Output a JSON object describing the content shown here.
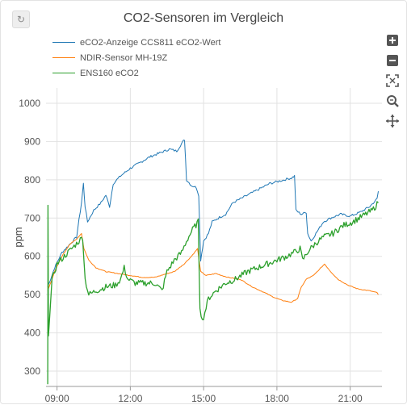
{
  "refresh_icon": "refresh-icon",
  "chart_data": {
    "type": "line",
    "title": "CO2-Sensoren im Vergleich",
    "ylabel": "ppm",
    "xlabel": "",
    "ylim": [
      260,
      1040
    ],
    "xlim": [
      8.55,
      22.3
    ],
    "yticks": [
      300,
      400,
      500,
      600,
      700,
      800,
      900,
      1000
    ],
    "xticks": [
      {
        "v": 9,
        "label": "09:00"
      },
      {
        "v": 12,
        "label": "12:00"
      },
      {
        "v": 15,
        "label": "15:00"
      },
      {
        "v": 18,
        "label": "18:00"
      },
      {
        "v": 21,
        "label": "21:00"
      }
    ],
    "grid": true,
    "legend_position": "top-left",
    "series": [
      {
        "name": "eCO2-Anzeige CCS811 eCO2-Wert",
        "color": "#1f77b4",
        "points": [
          [
            8.62,
            520
          ],
          [
            8.9,
            570
          ],
          [
            9.2,
            610
          ],
          [
            9.5,
            630
          ],
          [
            9.8,
            650
          ],
          [
            10.0,
            740
          ],
          [
            10.08,
            790
          ],
          [
            10.15,
            730
          ],
          [
            10.25,
            690
          ],
          [
            10.5,
            720
          ],
          [
            10.8,
            740
          ],
          [
            11.0,
            760
          ],
          [
            11.15,
            730
          ],
          [
            11.3,
            790
          ],
          [
            11.6,
            810
          ],
          [
            12.0,
            830
          ],
          [
            12.4,
            845
          ],
          [
            12.8,
            860
          ],
          [
            13.2,
            870
          ],
          [
            13.6,
            880
          ],
          [
            13.9,
            875
          ],
          [
            14.1,
            895
          ],
          [
            14.22,
            905
          ],
          [
            14.3,
            800
          ],
          [
            14.5,
            785
          ],
          [
            14.7,
            780
          ],
          [
            14.8,
            760
          ],
          [
            14.88,
            590
          ],
          [
            15.0,
            640
          ],
          [
            15.2,
            660
          ],
          [
            15.35,
            690
          ],
          [
            15.6,
            700
          ],
          [
            15.9,
            710
          ],
          [
            16.2,
            740
          ],
          [
            16.5,
            750
          ],
          [
            16.8,
            760
          ],
          [
            17.1,
            770
          ],
          [
            17.4,
            780
          ],
          [
            17.7,
            790
          ],
          [
            18.0,
            795
          ],
          [
            18.3,
            800
          ],
          [
            18.6,
            805
          ],
          [
            18.72,
            810
          ],
          [
            18.78,
            720
          ],
          [
            19.0,
            710
          ],
          [
            19.2,
            715
          ],
          [
            19.26,
            660
          ],
          [
            19.4,
            640
          ],
          [
            19.6,
            660
          ],
          [
            19.9,
            690
          ],
          [
            20.2,
            700
          ],
          [
            20.6,
            710
          ],
          [
            21.0,
            705
          ],
          [
            21.4,
            715
          ],
          [
            21.8,
            730
          ],
          [
            22.1,
            750
          ],
          [
            22.15,
            770
          ]
        ]
      },
      {
        "name": "NDIR-Sensor MH-19Z",
        "color": "#ff7f0e",
        "points": [
          [
            8.62,
            510
          ],
          [
            8.9,
            560
          ],
          [
            9.2,
            600
          ],
          [
            9.5,
            630
          ],
          [
            9.8,
            645
          ],
          [
            10.0,
            660
          ],
          [
            10.1,
            620
          ],
          [
            10.3,
            590
          ],
          [
            10.6,
            570
          ],
          [
            11.0,
            560
          ],
          [
            11.5,
            555
          ],
          [
            12.0,
            550
          ],
          [
            12.5,
            545
          ],
          [
            13.0,
            545
          ],
          [
            13.5,
            555
          ],
          [
            13.8,
            560
          ],
          [
            14.2,
            580
          ],
          [
            14.5,
            600
          ],
          [
            14.75,
            620
          ],
          [
            14.88,
            560
          ],
          [
            15.1,
            550
          ],
          [
            15.5,
            555
          ],
          [
            16.0,
            545
          ],
          [
            16.5,
            540
          ],
          [
            17.0,
            520
          ],
          [
            17.5,
            505
          ],
          [
            17.8,
            495
          ],
          [
            18.2,
            485
          ],
          [
            18.6,
            480
          ],
          [
            18.85,
            490
          ],
          [
            19.0,
            520
          ],
          [
            19.2,
            540
          ],
          [
            19.5,
            550
          ],
          [
            19.8,
            570
          ],
          [
            19.95,
            580
          ],
          [
            20.2,
            560
          ],
          [
            20.5,
            540
          ],
          [
            20.9,
            525
          ],
          [
            21.3,
            515
          ],
          [
            21.8,
            510
          ],
          [
            22.1,
            505
          ],
          [
            22.15,
            500
          ]
        ]
      },
      {
        "name": "ENS160 eCO2",
        "color": "#2ca02c",
        "points": [
          [
            8.62,
            260
          ],
          [
            8.63,
            730
          ],
          [
            8.65,
            400
          ],
          [
            8.8,
            540
          ],
          [
            9.0,
            580
          ],
          [
            9.3,
            600
          ],
          [
            9.6,
            620
          ],
          [
            9.9,
            640
          ],
          [
            10.05,
            650
          ],
          [
            10.15,
            540
          ],
          [
            10.3,
            500
          ],
          [
            10.6,
            510
          ],
          [
            11.0,
            520
          ],
          [
            11.4,
            525
          ],
          [
            11.6,
            540
          ],
          [
            11.75,
            570
          ],
          [
            11.9,
            540
          ],
          [
            12.2,
            530
          ],
          [
            12.6,
            530
          ],
          [
            13.0,
            530
          ],
          [
            13.3,
            510
          ],
          [
            13.5,
            560
          ],
          [
            13.8,
            590
          ],
          [
            14.1,
            610
          ],
          [
            14.3,
            640
          ],
          [
            14.55,
            670
          ],
          [
            14.78,
            690
          ],
          [
            14.85,
            470
          ],
          [
            14.95,
            430
          ],
          [
            15.2,
            490
          ],
          [
            15.5,
            510
          ],
          [
            15.9,
            530
          ],
          [
            16.3,
            540
          ],
          [
            16.8,
            560
          ],
          [
            17.2,
            570
          ],
          [
            17.6,
            580
          ],
          [
            18.0,
            590
          ],
          [
            18.4,
            600
          ],
          [
            18.7,
            610
          ],
          [
            18.95,
            620
          ],
          [
            19.05,
            590
          ],
          [
            19.3,
            615
          ],
          [
            19.6,
            635
          ],
          [
            19.9,
            650
          ],
          [
            20.3,
            660
          ],
          [
            20.7,
            680
          ],
          [
            21.1,
            690
          ],
          [
            21.5,
            705
          ],
          [
            21.9,
            720
          ],
          [
            22.15,
            740
          ]
        ]
      }
    ]
  }
}
